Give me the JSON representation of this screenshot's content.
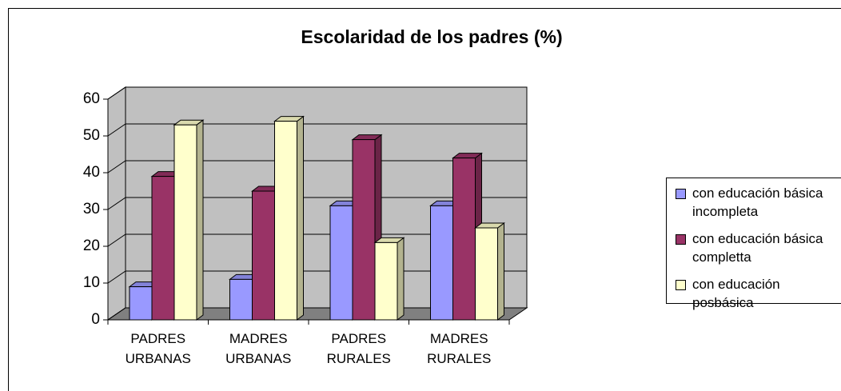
{
  "chart_data": {
    "type": "bar3d",
    "title": "Escolaridad de los padres (%)",
    "categories": [
      "PADRES URBANAS",
      "MADRES URBANAS",
      "PADRES RURALES",
      "MADRES RURALES"
    ],
    "series": [
      {
        "name": "con educación básica incompleta",
        "color": "#9999ff",
        "values": [
          9,
          11,
          31,
          31
        ]
      },
      {
        "name": "con educación básica completta",
        "color": "#993366",
        "values": [
          39,
          35,
          49,
          44
        ]
      },
      {
        "name": "con educación posbásica",
        "color": "#ffffcc",
        "values": [
          53,
          54,
          21,
          25
        ]
      }
    ],
    "ylim": [
      0,
      60
    ],
    "yticks": [
      0,
      10,
      20,
      30,
      40,
      50,
      60
    ],
    "grid": true,
    "legend": "right"
  }
}
